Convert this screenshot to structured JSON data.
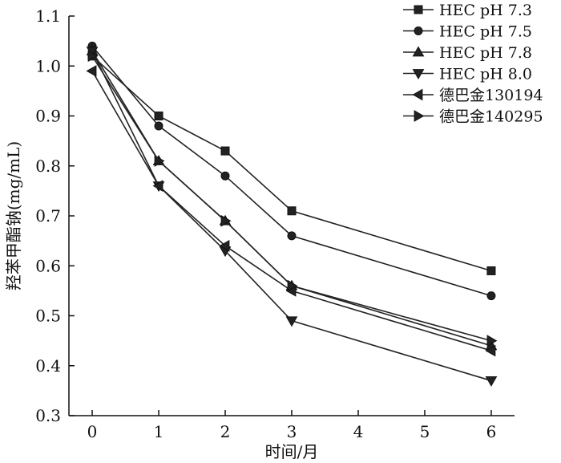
{
  "chart_data": {
    "type": "line",
    "xlabel": "时间/月",
    "ylabel": "羟苯甲酯钠(mg/mL)",
    "xlim": [
      -0.35,
      6.35
    ],
    "ylim": [
      0.3,
      1.1
    ],
    "xticks": [
      0,
      1,
      2,
      3,
      4,
      5,
      6
    ],
    "yticks": [
      "0.3",
      "0.4",
      "0.5",
      "0.6",
      "0.7",
      "0.8",
      "0.9",
      "1.0",
      "1.1"
    ],
    "legend_position": "top-right",
    "grid": false,
    "x": [
      0,
      1,
      2,
      3,
      6
    ],
    "series": [
      {
        "name": "HEC pH 7.3",
        "marker": "square",
        "values": [
          1.02,
          0.9,
          0.83,
          0.71,
          0.59
        ]
      },
      {
        "name": "HEC pH 7.5",
        "marker": "circle",
        "values": [
          1.04,
          0.88,
          0.78,
          0.66,
          0.54
        ]
      },
      {
        "name": "HEC pH 7.8",
        "marker": "triangle-up",
        "values": [
          1.03,
          0.81,
          0.69,
          0.56,
          0.44
        ]
      },
      {
        "name": "HEC pH 8.0",
        "marker": "triangle-down",
        "values": [
          1.03,
          0.76,
          0.63,
          0.49,
          0.37
        ]
      },
      {
        "name": "德巴金130194",
        "marker": "triangle-left",
        "values": [
          0.99,
          0.76,
          0.64,
          0.55,
          0.43
        ]
      },
      {
        "name": "德巴金140295",
        "marker": "triangle-right",
        "values": [
          1.02,
          0.81,
          0.69,
          0.56,
          0.45
        ]
      }
    ]
  }
}
